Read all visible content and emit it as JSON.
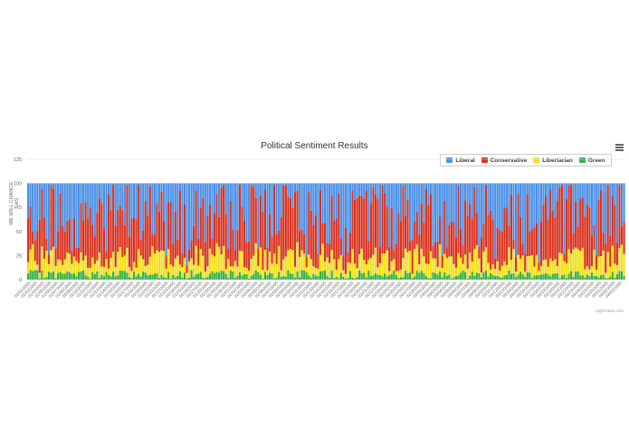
{
  "chart_data": {
    "type": "bar",
    "stacked": true,
    "title": "Political Sentiment Results",
    "ylabel": "WE WILL CHANCE THIS",
    "ylim": [
      0,
      125
    ],
    "yticks": [
      0,
      25,
      50,
      75,
      100,
      125
    ],
    "grid": true,
    "legend_position": "top-right",
    "credits": "Highcharts.com",
    "series": [
      {
        "name": "Liberal",
        "color": "#4a8fe7"
      },
      {
        "name": "Conservative",
        "color": "#d9321f"
      },
      {
        "name": "Libertarian",
        "color": "#f2e01e"
      },
      {
        "name": "Green",
        "color": "#33b04a"
      }
    ],
    "x_tick_labels": [
      "01/01/2005",
      "01/02/2005",
      "01/03/2005",
      "01/05/2005",
      "01/06/2005",
      "01/07/2005",
      "01/08/2005",
      "01/09/2005",
      "01/10/2005",
      "01/11/2005",
      "01/12/2005",
      "01/13/2005",
      "01/14/2005",
      "01/15/2005",
      "01/16/2005",
      "01/17/2005",
      "01/18/2005",
      "01/19/2005",
      "01/20/2005",
      "01/21/2005",
      "01/22/2005",
      "01/23/2005",
      "01/24/2005",
      "01/25/2005",
      "01/26/2005",
      "01/27/2005",
      "01/28/2005",
      "01/29/2005",
      "01/30/2005",
      "01/31/2005",
      "02/01/2005",
      "02/02/2005",
      "02/03/2005",
      "02/04/2005",
      "02/05/2005",
      "02/06/2005",
      "02/07/2005",
      "02/08/2005",
      "02/09/2005",
      "02/10/2005",
      "02/11/2005",
      "02/12/2005",
      "02/13/2005",
      "02/14/2005",
      "02/15/2005",
      "02/16/2005",
      "02/17/2005",
      "02/18/2005",
      "02/19/2005",
      "02/20/2005",
      "02/21/2005",
      "02/22/2005",
      "02/23/2005",
      "02/24/2005",
      "02/25/2005",
      "02/26/2005",
      "02/27/2005",
      "02/28/2005",
      "03/01/2005",
      "03/02/2005",
      "03/03/2005",
      "03/04/2005",
      "03/05/2005",
      "03/06/2005",
      "03/07/2005",
      "03/08/2005",
      "03/09/2005",
      "03/10/2005",
      "03/11/2005",
      "03/12/2005",
      "03/13/2005",
      "03/14/2005",
      "03/15/2005",
      "03/16/2005",
      "03/17/2005",
      "03/18/2005",
      "03/19/2005",
      "03/20/2005",
      "03/21/2005",
      "03/22/2005",
      "03/23/2005",
      "03/24/2005",
      "03/25/2005",
      "03/26/2005",
      "04/01/2005",
      "04/02/2005",
      "04/03/2005"
    ],
    "num_bars": 260,
    "bar_total": 100
  }
}
